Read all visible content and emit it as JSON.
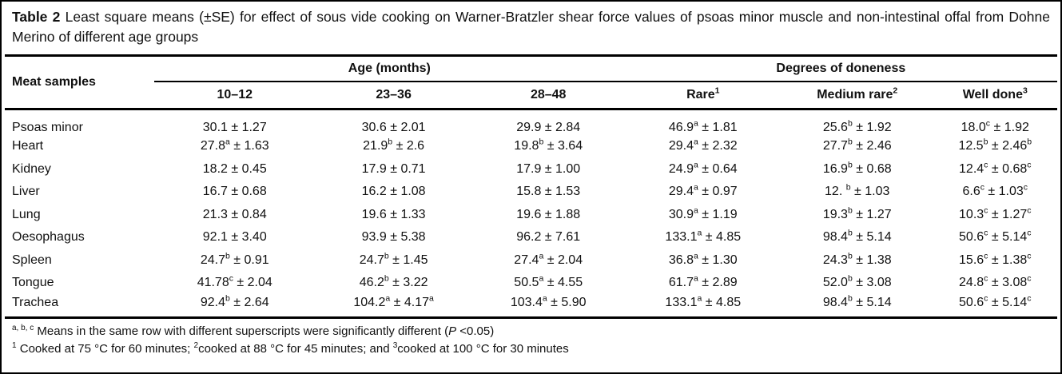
{
  "title": {
    "label": "Table 2",
    "text": "Least square means (±SE) for effect of sous vide cooking on Warner-Bratzler shear force values of psoas minor muscle and non-intestinal offal from Dohne Merino of different age groups"
  },
  "table": {
    "corner_header": "Meat samples",
    "group_headers": [
      "Age (months)",
      "Degrees of doneness"
    ],
    "sub_headers": [
      "10–12",
      "23–36",
      "28–48",
      "Rare^{1}",
      "Medium rare^{2}",
      "Well done^{3}"
    ],
    "rows": [
      {
        "sample": "Psoas minor",
        "values": [
          "30.1 ± 1.27",
          "30.6 ± 2.01",
          "29.9 ± 2.84",
          "46.9^{a} ± 1.81",
          "25.6^{b} ± 1.92",
          "18.0^{c} ± 1.92"
        ]
      },
      {
        "sample": "Heart",
        "values": [
          "27.8^{a} ± 1.63",
          "21.9^{b} ± 2.6",
          "19.8^{b} ± 3.64",
          "29.4^{a} ± 2.32",
          "27.7^{b} ± 2.46",
          "12.5^{b} ± 2.46^{b}"
        ]
      },
      {
        "sample": "Kidney",
        "values": [
          "18.2 ± 0.45",
          "17.9 ± 0.71",
          "17.9 ± 1.00",
          "24.9^{a} ± 0.64",
          "16.9^{b} ± 0.68",
          "12.4^{c} ± 0.68^{c}"
        ]
      },
      {
        "sample": "Liver",
        "values": [
          "16.7 ± 0.68",
          "16.2 ± 1.08",
          "15.8 ± 1.53",
          "29.4^{a} ± 0.97",
          "12. ^{b} ± 1.03",
          "6.6^{c} ± 1.03^{c}"
        ]
      },
      {
        "sample": "Lung",
        "values": [
          "21.3 ± 0.84",
          "19.6 ± 1.33",
          "19.6 ± 1.88",
          "30.9^{a} ± 1.19",
          "19.3^{b} ± 1.27",
          "10.3^{c} ± 1.27^{c}"
        ]
      },
      {
        "sample": "Oesophagus",
        "values": [
          "92.1 ± 3.40",
          "93.9 ± 5.38",
          "96.2 ± 7.61",
          "133.1^{a} ± 4.85",
          "98.4^{b} ± 5.14",
          "50.6^{c} ± 5.14^{c}"
        ]
      },
      {
        "sample": "Spleen",
        "values": [
          "24.7^{b} ± 0.91",
          "24.7^{b} ± 1.45",
          "27.4^{a} ± 2.04",
          "36.8^{a} ± 1.30",
          "24.3^{b} ± 1.38",
          "15.6^{c} ± 1.38^{c}"
        ]
      },
      {
        "sample": "Tongue",
        "values": [
          "41.78^{c} ± 2.04",
          "46.2^{b} ± 3.22",
          "50.5^{a} ± 4.55",
          "61.7^{a} ± 2.89",
          "52.0^{b} ± 3.08",
          "24.8^{c} ± 3.08^{c}"
        ]
      },
      {
        "sample": "Trachea",
        "values": [
          "92.4^{b} ± 2.64",
          "104.2^{a} ± 4.17^{a}",
          "103.4^{a} ± 5.90",
          "133.1^{a} ± 4.85",
          "98.4^{b} ± 5.14",
          "50.6^{c} ± 5.14^{c}"
        ]
      }
    ]
  },
  "footnotes": [
    "^{a, b, c} Means in the same row with different superscripts were significantly different (~P~ <0.05)",
    "^{1} Cooked at 75 °C for 60 minutes; ^{2}cooked at 88 °C for 45 minutes; and ^{3}cooked at 100 °C for 30 minutes"
  ],
  "colors": {
    "text": "#111111",
    "rule": "#000000",
    "background": "#ffffff"
  }
}
